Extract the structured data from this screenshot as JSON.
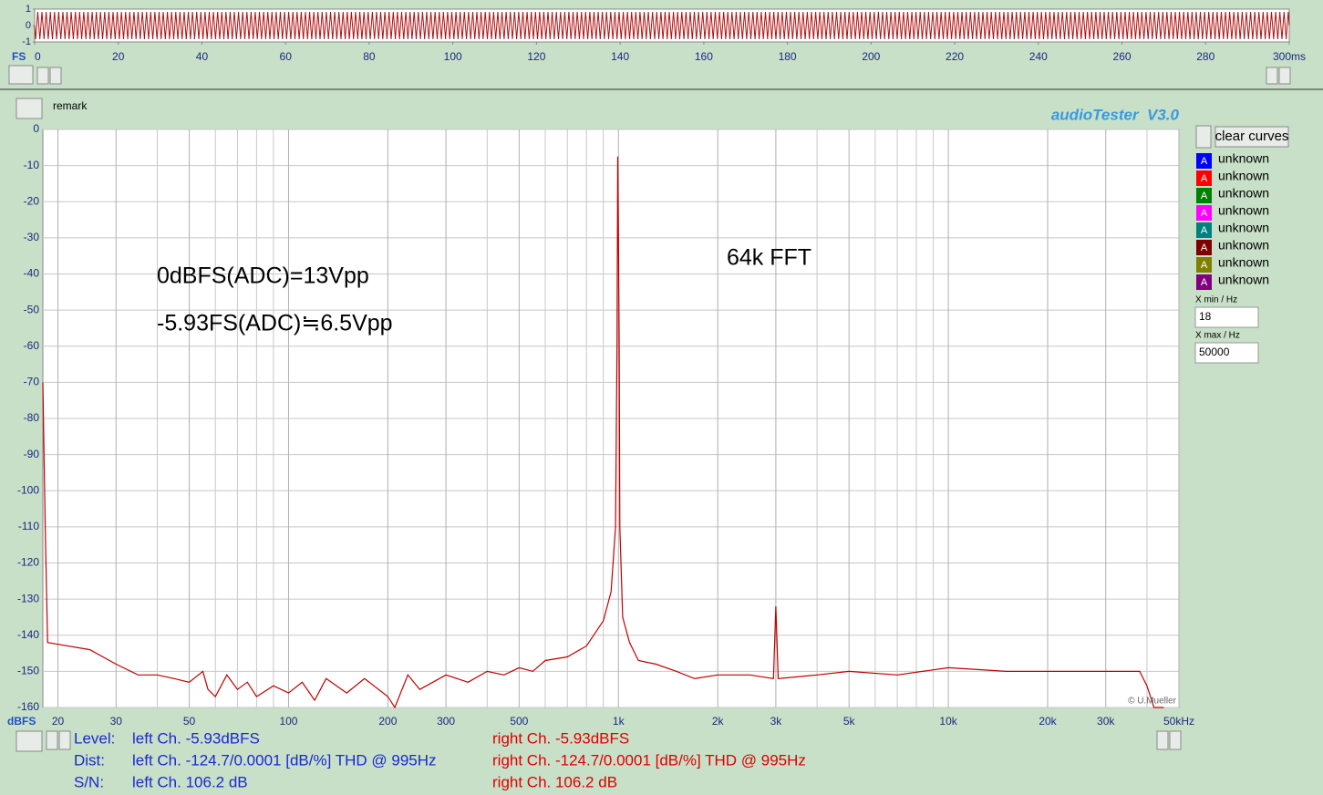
{
  "app": {
    "title": "audioTester  V3.0",
    "remark": "remark",
    "clear_button": "clear curves",
    "legend": [
      {
        "symbol": "A",
        "name": "unknown",
        "color": "#0000ff"
      },
      {
        "symbol": "A",
        "name": "unknown",
        "color": "#ff0000"
      },
      {
        "symbol": "A",
        "name": "unknown",
        "color": "#008000"
      },
      {
        "symbol": "A",
        "name": "unknown",
        "color": "#ff00ff"
      },
      {
        "symbol": "A",
        "name": "unknown",
        "color": "#008080"
      },
      {
        "symbol": "A",
        "name": "unknown",
        "color": "#800000"
      },
      {
        "symbol": "A",
        "name": "unknown",
        "color": "#808000"
      },
      {
        "symbol": "A",
        "name": "unknown",
        "color": "#800080"
      }
    ],
    "xmin_label": "X min / Hz",
    "xmin_value": "18",
    "xmax_label": "X max / Hz",
    "xmax_value": "50000",
    "copyright": "© U.Mueller"
  },
  "chart_data": [
    {
      "type": "waveform",
      "y_unit_label": "FS",
      "color": "#b01010",
      "xlim": [
        0,
        300
      ],
      "ylim": [
        -1,
        1
      ],
      "yticks": [
        1,
        0,
        -1
      ],
      "xticks": [
        0,
        20,
        40,
        60,
        80,
        100,
        120,
        140,
        160,
        180,
        200,
        220,
        240,
        260,
        280,
        {
          "value": 300,
          "label": "300ms"
        }
      ]
    },
    {
      "type": "line",
      "color": "#c00000",
      "x_log": true,
      "grid": true,
      "y_unit_label": "dBFS",
      "xlim": [
        18,
        50000
      ],
      "ylim": [
        -160,
        0
      ],
      "yticks": [
        0,
        -10,
        -20,
        -30,
        -40,
        -50,
        -60,
        -70,
        -80,
        -90,
        -100,
        -110,
        -120,
        -130,
        -140,
        -150,
        -160
      ],
      "xticks": [
        20,
        30,
        50,
        100,
        200,
        300,
        500,
        {
          "value": 1000,
          "label": "1k"
        },
        {
          "value": 2000,
          "label": "2k"
        },
        {
          "value": 3000,
          "label": "3k"
        },
        {
          "value": 5000,
          "label": "5k"
        },
        {
          "value": 10000,
          "label": "10k"
        },
        {
          "value": 20000,
          "label": "20k"
        },
        {
          "value": 30000,
          "label": "30k"
        },
        {
          "value": 50000,
          "label": "50kHz"
        }
      ],
      "xminorticks": [
        40,
        60,
        70,
        80,
        90,
        400,
        600,
        700,
        800,
        900,
        4000,
        6000,
        7000,
        8000,
        9000,
        40000
      ],
      "annotations": [
        "0dBFS(ADC)=13Vpp",
        "-5.93FS(ADC)≒6.5Vpp",
        "64k FFT"
      ],
      "x": [
        18,
        18.3,
        18.6,
        20,
        25,
        30,
        35,
        40,
        45,
        50,
        55,
        57,
        60,
        65,
        70,
        75,
        80,
        90,
        100,
        110,
        120,
        130,
        150,
        170,
        200,
        210,
        230,
        250,
        300,
        350,
        400,
        450,
        500,
        550,
        600,
        700,
        800,
        900,
        950,
        980,
        990,
        995,
        1000,
        1005,
        1010,
        1030,
        1080,
        1150,
        1300,
        1500,
        1700,
        2000,
        2500,
        2950,
        3000,
        3050,
        4000,
        5000,
        7000,
        10000,
        15000,
        20000,
        30000,
        38000,
        40000,
        42000,
        45000
      ],
      "values": [
        -70,
        -110,
        -142,
        -142.5,
        -144,
        -148,
        -151,
        -151,
        -152,
        -153,
        -150,
        -155,
        -157,
        -151,
        -155,
        -153,
        -157,
        -154,
        -156,
        -153,
        -158,
        -152,
        -156,
        -152,
        -157,
        -160,
        -151,
        -155,
        -151,
        -153,
        -150,
        -151,
        -149,
        -150,
        -147,
        -146,
        -143,
        -136,
        -128,
        -110,
        -60,
        -7.5,
        -30,
        -60,
        -110,
        -135,
        -142,
        -147,
        -148,
        -150,
        -152,
        -151,
        -151,
        -152,
        -132,
        -152,
        -151,
        -150,
        -151,
        -149,
        -150,
        -150,
        -150,
        -150,
        -154,
        -160,
        -160
      ]
    }
  ],
  "status": {
    "rows": [
      {
        "label": "Level:",
        "left": "left Ch. -5.93dBFS",
        "right": "right Ch. -5.93dBFS"
      },
      {
        "label": "Dist:",
        "left": "left Ch. -124.7/0.0001 [dB/%] THD @ 995Hz",
        "right": "right Ch. -124.7/0.0001 [dB/%] THD @ 995Hz"
      },
      {
        "label": "S/N:",
        "left": "left Ch. 106.2 dB",
        "right": "right Ch. 106.2 dB"
      }
    ]
  }
}
